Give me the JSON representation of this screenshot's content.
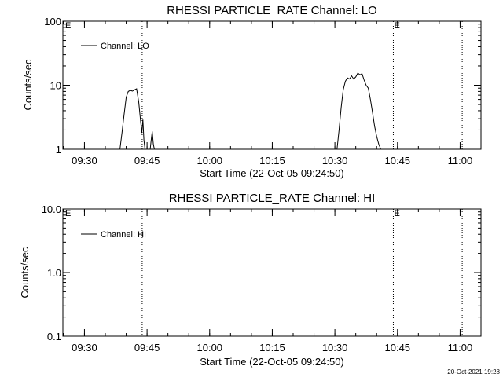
{
  "footer_timestamp": "20-Oct-2021 19:28",
  "chart_data": [
    {
      "type": "line",
      "title": "RHESSI PARTICLE_RATE Channel: LO",
      "xlabel": "Start Time (22-Oct-05 09:24:50)",
      "ylabel": "Counts/sec",
      "yscale": "log",
      "ylim": [
        1,
        100
      ],
      "ytick_labels": [
        "1",
        "10",
        "100"
      ],
      "ytick_values": [
        1,
        10,
        100
      ],
      "xlim": [
        "09:24:50",
        "11:05:00"
      ],
      "xtick_labels": [
        "09:30",
        "09:45",
        "10:00",
        "10:15",
        "10:30",
        "10:45",
        "11:00"
      ],
      "grid": false,
      "legend_position": "top-left",
      "series": [
        {
          "name": "Channel: LO",
          "x": [
            "09:38:30",
            "09:39:00",
            "09:39:30",
            "09:40:00",
            "09:40:30",
            "09:41:00",
            "09:41:30",
            "09:42:00",
            "09:42:30",
            "09:43:00",
            "09:43:30",
            "09:43:45",
            "09:44:00",
            "09:44:15",
            "09:44:30",
            "09:44:45",
            "09:45:00",
            "09:45:15",
            "09:45:30",
            "09:45:45",
            "09:46:00",
            "09:46:15",
            "09:46:30",
            "09:46:45",
            "09:47:00",
            null,
            "10:30:30",
            "10:31:00",
            "10:31:30",
            "10:32:00",
            "10:32:30",
            "10:33:00",
            "10:33:30",
            "10:34:00",
            "10:34:30",
            "10:35:00",
            "10:35:30",
            "10:36:00",
            "10:36:30",
            "10:37:00",
            "10:37:30",
            "10:38:00",
            "10:38:30",
            "10:39:00",
            "10:39:30",
            "10:40:00",
            "10:40:30",
            "10:41:00",
            "10:41:30"
          ],
          "y": [
            1,
            1.8,
            3.5,
            6.5,
            8,
            8.3,
            8.1,
            8.5,
            8.8,
            5.5,
            2.6,
            1.8,
            2.9,
            1.4,
            1,
            1,
            1,
            1,
            1,
            1,
            1.4,
            1.9,
            1.2,
            1,
            1,
            null,
            1,
            2,
            4.5,
            8.5,
            11.5,
            13,
            12.5,
            14,
            12.5,
            13.5,
            15.5,
            14.5,
            15.2,
            12,
            10,
            9,
            6,
            3.8,
            2.3,
            1.6,
            1.2,
            1,
            1
          ]
        }
      ],
      "markers": [
        {
          "type": "dotted-vline",
          "x": "09:43:50",
          "label": ""
        },
        {
          "type": "dotted-vline",
          "x": "10:44:00",
          "label": "E"
        },
        {
          "type": "dotted-vline",
          "x": "11:00:30",
          "label": ""
        }
      ],
      "corner_label": "E"
    },
    {
      "type": "line",
      "title": "RHESSI PARTICLE_RATE Channel: HI",
      "xlabel": "Start Time (22-Oct-05 09:24:50)",
      "ylabel": "Counts/sec",
      "yscale": "log",
      "ylim": [
        0.1,
        10
      ],
      "ytick_labels": [
        "0.1",
        "1.0",
        "10.0"
      ],
      "ytick_values": [
        0.1,
        1,
        10
      ],
      "xlim": [
        "09:24:50",
        "11:05:00"
      ],
      "xtick_labels": [
        "09:30",
        "09:45",
        "10:00",
        "10:15",
        "10:30",
        "10:45",
        "11:00"
      ],
      "grid": false,
      "legend_position": "top-left",
      "series": [
        {
          "name": "Channel: HI",
          "x": [],
          "y": []
        }
      ],
      "markers": [
        {
          "type": "dotted-vline",
          "x": "09:43:50",
          "label": ""
        },
        {
          "type": "dotted-vline",
          "x": "10:44:00",
          "label": "E"
        },
        {
          "type": "dotted-vline",
          "x": "11:00:30",
          "label": ""
        }
      ],
      "corner_label": "E"
    }
  ]
}
